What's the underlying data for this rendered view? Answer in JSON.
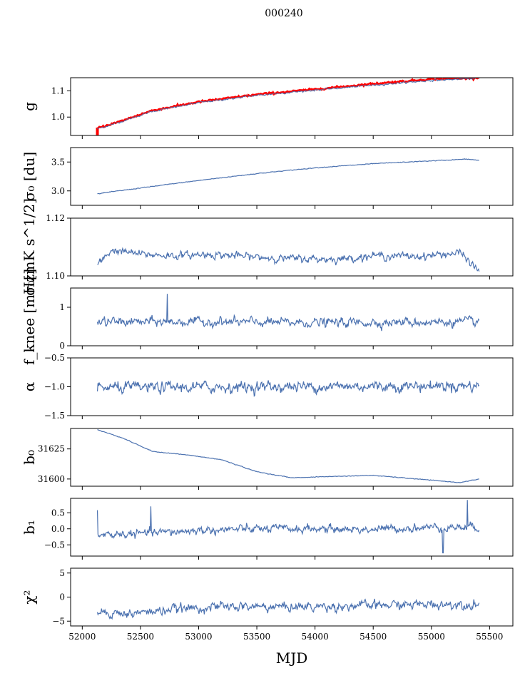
{
  "figure": {
    "title": "000240",
    "xlabel": "MJD",
    "xlim": [
      51900,
      55700
    ],
    "xticks": [
      52000,
      52500,
      53000,
      53500,
      54000,
      54500,
      55000,
      55500
    ]
  },
  "colors": {
    "series": "#4c72b0",
    "overlay": "#ff0000",
    "axis": "#000000"
  },
  "chart_data": [
    {
      "type": "line",
      "ylabel": "g",
      "ylim": [
        0.93,
        1.15
      ],
      "yticks": [
        1.0,
        1.1
      ],
      "ytick_labels": [
        "1.0",
        "1.1"
      ],
      "x_start": 52130,
      "x_end": 55410,
      "knots": [
        [
          52130,
          0.955
        ],
        [
          52300,
          0.978
        ],
        [
          52600,
          1.022
        ],
        [
          53000,
          1.055
        ],
        [
          53500,
          1.083
        ],
        [
          54000,
          1.103
        ],
        [
          54500,
          1.122
        ],
        [
          55000,
          1.14
        ],
        [
          55410,
          1.148
        ]
      ],
      "noise": 0.003,
      "overlay": {
        "name": "",
        "knots": [
          [
            52130,
            0.958
          ],
          [
            52300,
            0.98
          ],
          [
            52600,
            1.025
          ],
          [
            53000,
            1.058
          ],
          [
            53500,
            1.086
          ],
          [
            54000,
            1.106
          ],
          [
            54500,
            1.127
          ],
          [
            55000,
            1.145
          ],
          [
            55410,
            1.15
          ]
        ],
        "spike_x": 52130,
        "spike_range": [
          0.93,
          0.96
        ]
      }
    },
    {
      "type": "line",
      "ylabel": "σ₀ [du]",
      "ylim": [
        2.75,
        3.75
      ],
      "yticks": [
        3.0,
        3.5
      ],
      "ytick_labels": [
        "3.0",
        "3.5"
      ],
      "x_start": 52130,
      "x_end": 55410,
      "knots": [
        [
          52130,
          2.95
        ],
        [
          52500,
          3.05
        ],
        [
          53000,
          3.18
        ],
        [
          53500,
          3.3
        ],
        [
          54000,
          3.4
        ],
        [
          54500,
          3.47
        ],
        [
          55000,
          3.52
        ],
        [
          55300,
          3.55
        ],
        [
          55410,
          3.53
        ]
      ],
      "noise": 0.006
    },
    {
      "type": "line",
      "ylabel": "σ₀[mK s^1/2]",
      "ylim": [
        1.1,
        1.12
      ],
      "yticks": [
        1.1,
        1.12
      ],
      "ytick_labels": [
        "1.10",
        "1.12"
      ],
      "x_start": 52130,
      "x_end": 55410,
      "knots": [
        [
          52130,
          1.1035
        ],
        [
          52250,
          1.109
        ],
        [
          52500,
          1.1075
        ],
        [
          52800,
          1.107
        ],
        [
          53100,
          1.1075
        ],
        [
          53500,
          1.1065
        ],
        [
          53800,
          1.106
        ],
        [
          54200,
          1.1058
        ],
        [
          54500,
          1.107
        ],
        [
          54900,
          1.1068
        ],
        [
          55250,
          1.108
        ],
        [
          55410,
          1.1015
        ]
      ],
      "noise": 0.0012
    },
    {
      "type": "line",
      "ylabel": "f_knee [mHz]",
      "ylim": [
        0,
        1.5
      ],
      "yticks": [
        0,
        1
      ],
      "ytick_labels": [
        "0",
        "1"
      ],
      "x_start": 52130,
      "x_end": 55410,
      "knots": [
        [
          52130,
          0.62
        ],
        [
          53000,
          0.62
        ],
        [
          54000,
          0.6
        ],
        [
          55410,
          0.62
        ]
      ],
      "noise": 0.11,
      "spikes": [
        [
          52730,
          1.35
        ]
      ]
    },
    {
      "type": "line",
      "ylabel": "α",
      "ylim": [
        -1.5,
        -0.5
      ],
      "yticks": [
        -1.5,
        -1.0,
        -0.5
      ],
      "ytick_labels": [
        "−1.5",
        "−1.0",
        "−0.5"
      ],
      "x_start": 52130,
      "x_end": 55410,
      "knots": [
        [
          52130,
          -1.02
        ],
        [
          53500,
          -1.0
        ],
        [
          55410,
          -0.98
        ]
      ],
      "noise": 0.09
    },
    {
      "type": "line",
      "ylabel": "b₀",
      "ylim": [
        31594,
        31642
      ],
      "yticks": [
        31600,
        31625
      ],
      "ytick_labels": [
        "31600",
        "31625"
      ],
      "x_start": 52130,
      "x_end": 55410,
      "knots": [
        [
          52130,
          31641
        ],
        [
          52350,
          31634
        ],
        [
          52600,
          31623
        ],
        [
          52900,
          31620
        ],
        [
          53200,
          31616
        ],
        [
          53500,
          31606
        ],
        [
          53800,
          31601
        ],
        [
          54100,
          31602
        ],
        [
          54500,
          31603
        ],
        [
          55000,
          31599
        ],
        [
          55250,
          31597
        ],
        [
          55410,
          31600
        ]
      ],
      "noise": 0.25
    },
    {
      "type": "line",
      "ylabel": "b₁",
      "ylim": [
        -0.85,
        0.95
      ],
      "yticks": [
        -0.5,
        0.0,
        0.5
      ],
      "ytick_labels": [
        "−0.5",
        "0.0",
        "0.5"
      ],
      "x_start": 52130,
      "x_end": 55410,
      "knots": [
        [
          52130,
          -0.2
        ],
        [
          52500,
          -0.15
        ],
        [
          53000,
          -0.05
        ],
        [
          53500,
          0.0
        ],
        [
          54000,
          0.0
        ],
        [
          54500,
          -0.02
        ],
        [
          55000,
          0.05
        ],
        [
          55410,
          0.05
        ]
      ],
      "noise": 0.12,
      "spikes": [
        [
          52130,
          0.58
        ],
        [
          52590,
          0.7
        ],
        [
          55100,
          -0.75
        ],
        [
          55310,
          0.9
        ]
      ]
    },
    {
      "type": "line",
      "ylabel": "χ²",
      "ylim": [
        -6,
        6
      ],
      "yticks": [
        -5,
        0,
        5
      ],
      "ytick_labels": [
        "−5",
        "0",
        "5"
      ],
      "x_start": 52130,
      "x_end": 55410,
      "knots": [
        [
          52130,
          -3.0
        ],
        [
          52400,
          -3.5
        ],
        [
          52800,
          -2.5
        ],
        [
          53200,
          -2.0
        ],
        [
          54000,
          -2.0
        ],
        [
          55000,
          -1.5
        ],
        [
          55410,
          -1.5
        ]
      ],
      "noise": 0.9
    }
  ]
}
